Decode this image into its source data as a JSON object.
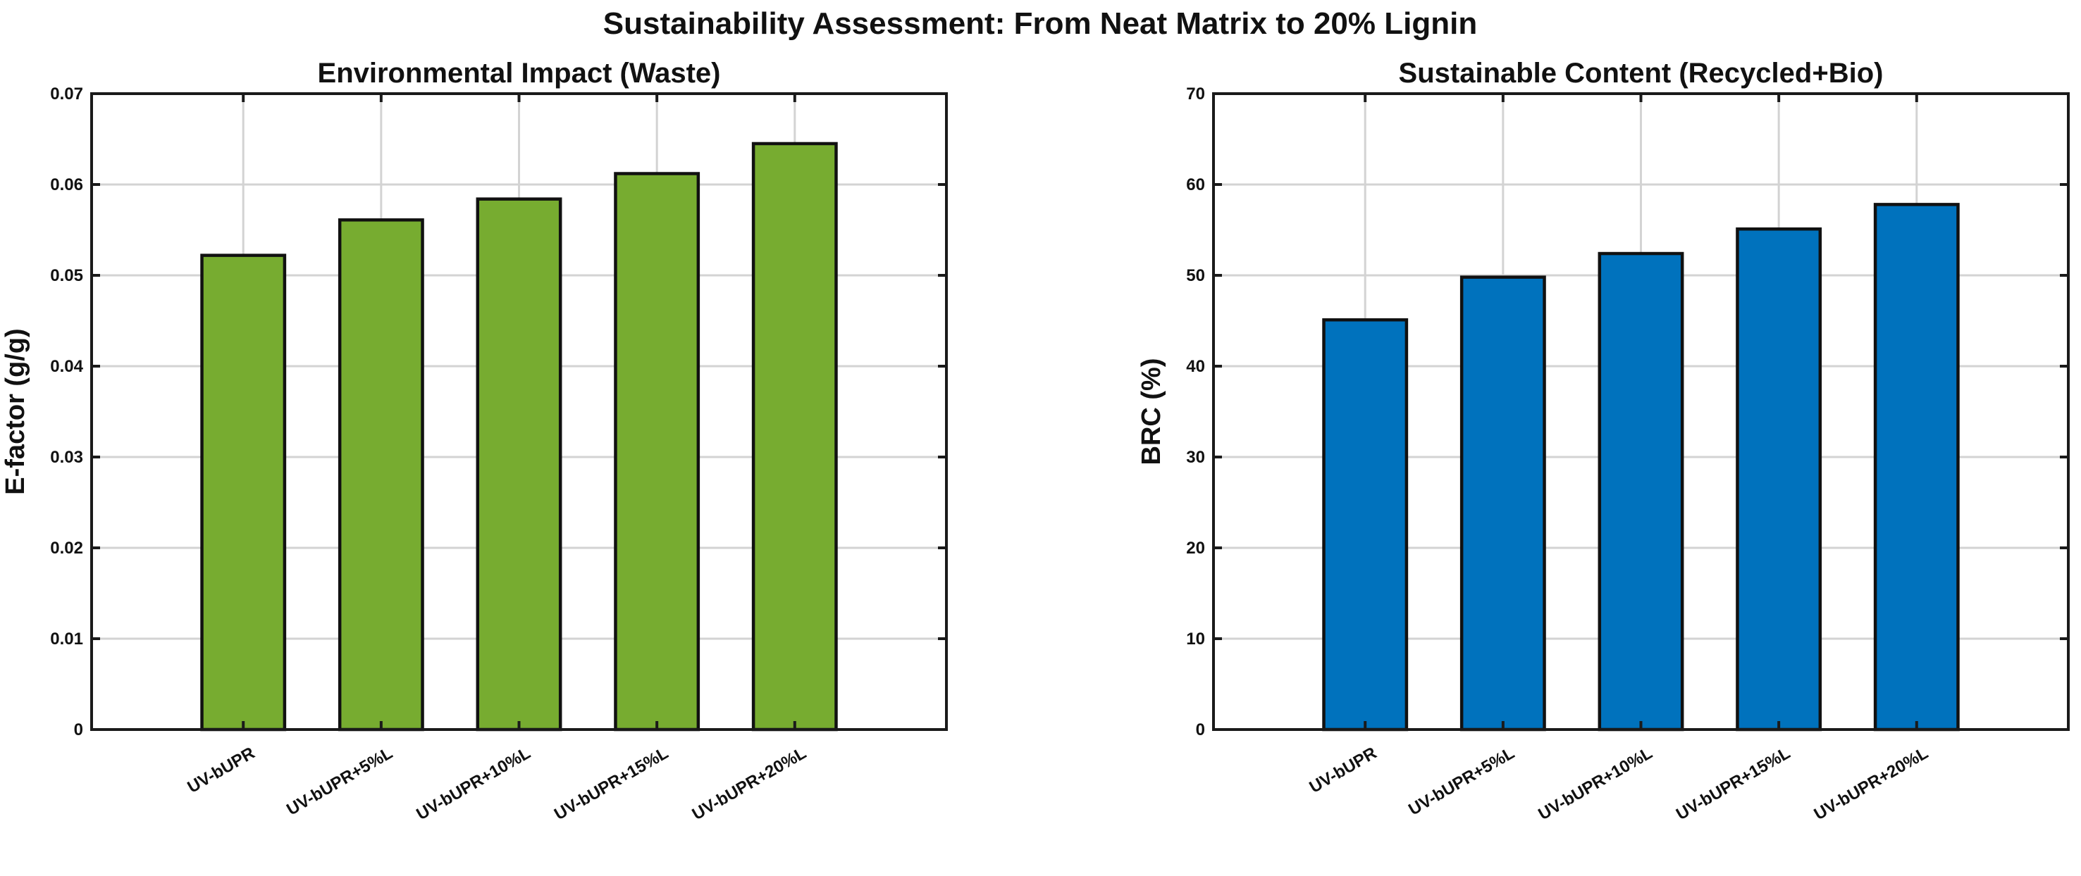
{
  "figure": {
    "title": "Sustainability Assessment: From Neat Matrix to 20% Lignin"
  },
  "chart_data": [
    {
      "type": "bar",
      "title": "Environmental Impact (Waste)",
      "xlabel": "",
      "ylabel": "E-factor (g/g)",
      "categories": [
        "UV-bUPR",
        "UV-bUPR+5%L",
        "UV-bUPR+10%L",
        "UV-bUPR+15%L",
        "UV-bUPR+20%L"
      ],
      "values": [
        0.0522,
        0.0561,
        0.0584,
        0.0612,
        0.0645
      ],
      "ylim": [
        0,
        0.07
      ],
      "yticks": [
        0,
        0.01,
        0.02,
        0.03,
        0.04,
        0.05,
        0.06,
        0.07
      ],
      "ytick_labels": [
        "0",
        "0.01",
        "0.02",
        "0.03",
        "0.04",
        "0.05",
        "0.06",
        "0.07"
      ],
      "color": "#77ac30",
      "grid": true
    },
    {
      "type": "bar",
      "title": "Sustainable Content (Recycled+Bio)",
      "xlabel": "",
      "ylabel": "BRC (%)",
      "categories": [
        "UV-bUPR",
        "UV-bUPR+5%L",
        "UV-bUPR+10%L",
        "UV-bUPR+15%L",
        "UV-bUPR+20%L"
      ],
      "values": [
        45.1,
        49.8,
        52.4,
        55.1,
        57.8
      ],
      "ylim": [
        0,
        70
      ],
      "yticks": [
        0,
        10,
        20,
        30,
        40,
        50,
        60,
        70
      ],
      "ytick_labels": [
        "0",
        "10",
        "20",
        "30",
        "40",
        "50",
        "60",
        "70"
      ],
      "color": "#0072bd",
      "grid": true
    }
  ]
}
